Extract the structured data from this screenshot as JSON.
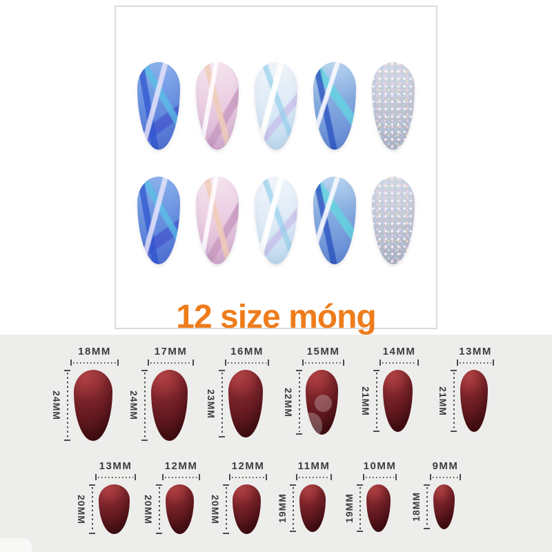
{
  "page": {
    "background_color": "#ffffff",
    "chart_background_color": "#ededec"
  },
  "photo_panel": {
    "border_color": "#dbdbdb",
    "row_count": 2,
    "nail_designs": [
      {
        "name": "blue-shattered-glass",
        "colors": [
          "#8fb4ec",
          "#2f55d0",
          "#5abee6",
          "#e6e4fa"
        ]
      },
      {
        "name": "pink-iridescent",
        "colors": [
          "#f6e6ef",
          "#e9cbe0",
          "#f0cdb8",
          "#c898c0"
        ]
      },
      {
        "name": "ice-white-iridescent",
        "colors": [
          "#f2f6fb",
          "#dce9f6",
          "#96d0ec",
          "#c4b4e8"
        ]
      },
      {
        "name": "blue-teal-shattered-glass",
        "colors": [
          "#bcd8f0",
          "#2850be",
          "#64d2e0",
          "#fafaff"
        ]
      },
      {
        "name": "silver-holo-glitter",
        "colors": [
          "#d8dbe4",
          "#c2c7d4",
          "#f4d2e8",
          "#b4d0f0"
        ]
      }
    ]
  },
  "caption": {
    "text": "12 size móng",
    "color": "#ee7c1b"
  },
  "size_chart": {
    "unit": "MM",
    "nail_color": "#6d1d24",
    "label_color": "#3c3c3c",
    "rows": [
      {
        "items": [
          {
            "width": "18MM",
            "length": "24MM"
          },
          {
            "width": "17MM",
            "length": "24MM"
          },
          {
            "width": "16MM",
            "length": "23MM"
          },
          {
            "width": "15MM",
            "length": "22MM"
          },
          {
            "width": "14MM",
            "length": "21MM"
          },
          {
            "width": "13MM",
            "length": "21MM"
          }
        ]
      },
      {
        "items": [
          {
            "width": "13MM",
            "length": "20MM"
          },
          {
            "width": "12MM",
            "length": "20MM"
          },
          {
            "width": "12MM",
            "length": "20MM"
          },
          {
            "width": "11MM",
            "length": "19MM"
          },
          {
            "width": "10MM",
            "length": "19MM"
          },
          {
            "width": "9MM",
            "length": "18MM"
          }
        ]
      }
    ]
  }
}
